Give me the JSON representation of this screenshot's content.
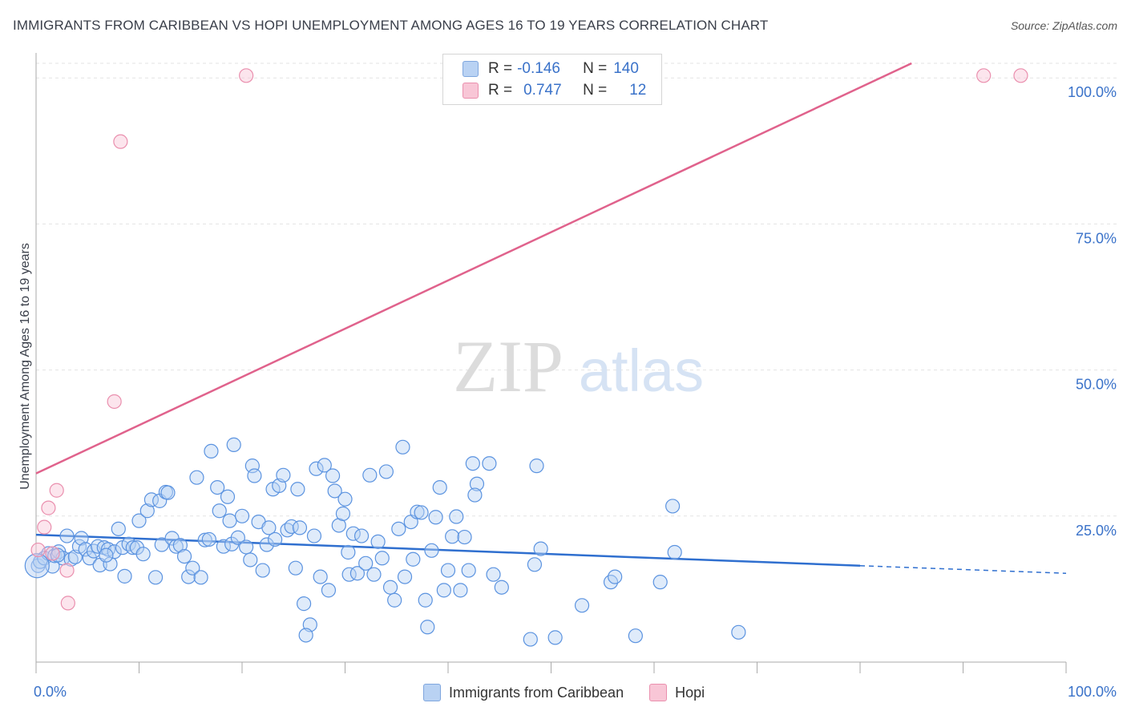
{
  "title": "IMMIGRANTS FROM CARIBBEAN VS HOPI UNEMPLOYMENT AMONG AGES 16 TO 19 YEARS CORRELATION CHART",
  "source": "Source: ZipAtlas.com",
  "watermark": {
    "zip": "ZIP",
    "atlas": "atlas"
  },
  "legend": {
    "caribbean": {
      "r_label": "R =",
      "r_value": "-0.146",
      "n_label": "N =",
      "n_value": "140"
    },
    "hopi": {
      "r_label": "R =",
      "r_value": "0.747",
      "n_label": "N =",
      "n_value": "12"
    }
  },
  "bottom_legend": {
    "caribbean": "Immigrants from Caribbean",
    "hopi": "Hopi"
  },
  "colors": {
    "caribbean": "#5b93e0",
    "caribbean_line": "#2f6fcf",
    "hopi": "#ea8fae",
    "hopi_line": "#e0628c",
    "axis_text": "#3a72c9",
    "grid": "#e3e3e3"
  },
  "chart_data": {
    "type": "scatter",
    "title": "IMMIGRANTS FROM CARIBBEAN VS HOPI UNEMPLOYMENT AMONG AGES 16 TO 19 YEARS CORRELATION CHART",
    "xlabel": "",
    "ylabel": "Unemployment Among Ages 16 to 19 years",
    "xlim": [
      0,
      100
    ],
    "ylim": [
      0,
      102.5
    ],
    "x_tick_labels": [
      "0.0%",
      "100.0%"
    ],
    "y_ticks": [
      25,
      50,
      75,
      100
    ],
    "y_tick_labels": [
      "25.0%",
      "50.0%",
      "75.0%",
      "100.0%"
    ],
    "grid": true,
    "series": [
      {
        "name": "Immigrants from Caribbean",
        "r": -0.146,
        "n": 140,
        "trend": {
          "x0": 0,
          "y0": 21.8,
          "x1": 80,
          "y1": 16.5,
          "dash_to_x": 100,
          "dash_to_y": 15.2
        },
        "points": [
          [
            0.2,
            16.5
          ],
          [
            0.4,
            17.2
          ],
          [
            0.8,
            17.8
          ],
          [
            1.2,
            18.6
          ],
          [
            1.6,
            16.4
          ],
          [
            1.8,
            18.2
          ],
          [
            2.2,
            18.9
          ],
          [
            2.6,
            17.8
          ],
          [
            3.0,
            21.6
          ],
          [
            3.4,
            17.6
          ],
          [
            3.8,
            18.0
          ],
          [
            4.2,
            19.8
          ],
          [
            4.4,
            21.2
          ],
          [
            4.8,
            19.3
          ],
          [
            5.2,
            17.8
          ],
          [
            5.6,
            19.0
          ],
          [
            6.0,
            19.8
          ],
          [
            6.2,
            16.6
          ],
          [
            6.6,
            19.6
          ],
          [
            7.0,
            19.3
          ],
          [
            7.2,
            16.8
          ],
          [
            7.6,
            18.9
          ],
          [
            8.0,
            22.8
          ],
          [
            8.4,
            19.6
          ],
          [
            8.6,
            14.7
          ],
          [
            9.0,
            20.2
          ],
          [
            9.4,
            19.6
          ],
          [
            9.8,
            19.6
          ],
          [
            10.0,
            24.2
          ],
          [
            10.4,
            18.5
          ],
          [
            10.8,
            25.9
          ],
          [
            11.2,
            27.8
          ],
          [
            11.6,
            14.5
          ],
          [
            12.0,
            27.6
          ],
          [
            12.2,
            20.1
          ],
          [
            12.6,
            29.1
          ],
          [
            12.8,
            29.0
          ],
          [
            13.2,
            21.2
          ],
          [
            13.6,
            19.8
          ],
          [
            14.0,
            20.0
          ],
          [
            14.4,
            18.1
          ],
          [
            14.8,
            14.6
          ],
          [
            15.2,
            16.1
          ],
          [
            15.6,
            31.6
          ],
          [
            16.0,
            14.5
          ],
          [
            16.4,
            20.9
          ],
          [
            16.8,
            21.0
          ],
          [
            17.0,
            36.1
          ],
          [
            17.6,
            29.9
          ],
          [
            17.8,
            25.9
          ],
          [
            18.2,
            19.8
          ],
          [
            18.6,
            28.3
          ],
          [
            18.8,
            24.2
          ],
          [
            19.0,
            20.2
          ],
          [
            19.2,
            37.2
          ],
          [
            19.6,
            21.3
          ],
          [
            20.0,
            25.0
          ],
          [
            20.4,
            19.7
          ],
          [
            20.8,
            17.5
          ],
          [
            21.0,
            33.6
          ],
          [
            21.2,
            31.9
          ],
          [
            21.6,
            24.0
          ],
          [
            22.0,
            15.7
          ],
          [
            22.4,
            20.1
          ],
          [
            22.6,
            23.0
          ],
          [
            23.0,
            29.6
          ],
          [
            23.2,
            21.0
          ],
          [
            23.6,
            30.2
          ],
          [
            24.0,
            32.0
          ],
          [
            24.4,
            22.6
          ],
          [
            24.8,
            23.2
          ],
          [
            25.2,
            16.1
          ],
          [
            25.4,
            29.6
          ],
          [
            25.6,
            23.0
          ],
          [
            26.0,
            10.0
          ],
          [
            26.6,
            6.4
          ],
          [
            27.0,
            21.6
          ],
          [
            27.2,
            33.1
          ],
          [
            27.6,
            14.6
          ],
          [
            28.0,
            33.7
          ],
          [
            28.4,
            12.3
          ],
          [
            28.8,
            31.9
          ],
          [
            29.0,
            29.3
          ],
          [
            29.4,
            23.4
          ],
          [
            29.8,
            25.4
          ],
          [
            30.0,
            27.9
          ],
          [
            30.4,
            15.0
          ],
          [
            30.8,
            22.0
          ],
          [
            31.2,
            15.2
          ],
          [
            31.6,
            21.6
          ],
          [
            32.0,
            16.9
          ],
          [
            32.4,
            32.0
          ],
          [
            32.8,
            15.0
          ],
          [
            33.2,
            20.6
          ],
          [
            33.6,
            17.8
          ],
          [
            34.0,
            32.6
          ],
          [
            34.4,
            12.8
          ],
          [
            34.8,
            10.6
          ],
          [
            35.2,
            22.8
          ],
          [
            35.6,
            36.8
          ],
          [
            35.8,
            14.6
          ],
          [
            36.4,
            24.0
          ],
          [
            36.6,
            17.6
          ],
          [
            37.0,
            25.7
          ],
          [
            37.4,
            25.6
          ],
          [
            37.8,
            10.6
          ],
          [
            38.0,
            6.0
          ],
          [
            38.4,
            19.1
          ],
          [
            38.8,
            24.8
          ],
          [
            39.2,
            29.9
          ],
          [
            39.6,
            12.3
          ],
          [
            40.0,
            15.7
          ],
          [
            40.4,
            21.5
          ],
          [
            40.8,
            24.9
          ],
          [
            41.2,
            12.3
          ],
          [
            41.6,
            21.4
          ],
          [
            42.0,
            15.7
          ],
          [
            42.4,
            34.0
          ],
          [
            42.8,
            30.5
          ],
          [
            44.0,
            34.0
          ],
          [
            44.4,
            15.0
          ],
          [
            45.2,
            12.8
          ],
          [
            48.0,
            3.9
          ],
          [
            48.4,
            16.7
          ],
          [
            48.6,
            33.6
          ],
          [
            49.0,
            19.4
          ],
          [
            50.4,
            4.2
          ],
          [
            53.0,
            9.7
          ],
          [
            55.8,
            13.7
          ],
          [
            56.2,
            14.6
          ],
          [
            58.2,
            4.5
          ],
          [
            60.6,
            13.7
          ],
          [
            61.8,
            26.7
          ],
          [
            62.0,
            18.8
          ],
          [
            68.2,
            5.1
          ],
          [
            2.1,
            18.3
          ],
          [
            6.8,
            18.3
          ],
          [
            26.2,
            4.6
          ],
          [
            30.3,
            18.8
          ],
          [
            42.6,
            28.6
          ]
        ]
      },
      {
        "name": "Hopi",
        "r": 0.747,
        "n": 12,
        "trend": {
          "x0": 0,
          "y0": 32.3,
          "x1": 85,
          "y1": 102.5
        },
        "points": [
          [
            0.2,
            19.2
          ],
          [
            0.8,
            23.1
          ],
          [
            1.2,
            26.4
          ],
          [
            2.0,
            29.4
          ],
          [
            3.0,
            15.7
          ],
          [
            3.1,
            10.1
          ],
          [
            7.6,
            44.6
          ],
          [
            8.2,
            89.1
          ],
          [
            20.4,
            100.4
          ],
          [
            92.0,
            100.4
          ],
          [
            95.6,
            100.4
          ],
          [
            1.6,
            18.6
          ]
        ]
      }
    ]
  }
}
